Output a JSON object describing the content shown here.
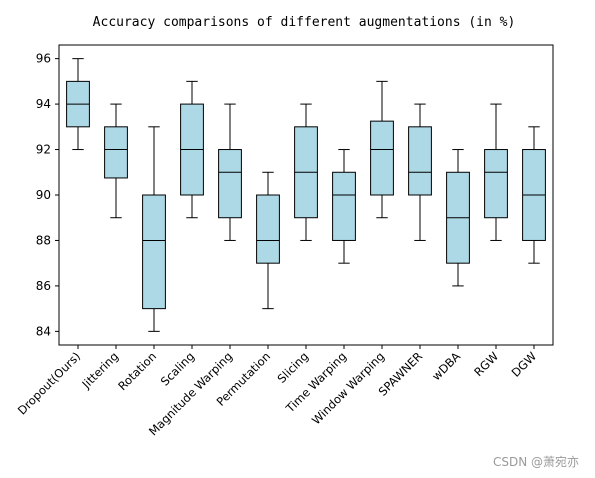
{
  "chart_data": {
    "type": "box",
    "title": "Accuracy comparisons of different augmentations (in %)",
    "xlabel": "",
    "ylabel": "",
    "ylim": [
      83.4,
      96.6
    ],
    "yticks": [
      84,
      86,
      88,
      90,
      92,
      94,
      96
    ],
    "box_color": "#add8e6",
    "line_color": "#000000",
    "categories": [
      "Dropout(Ours)",
      "Jittering",
      "Rotation",
      "Scaling",
      "Magnitude Warping",
      "Permutation",
      "Slicing",
      "Time Warping",
      "Window Warping",
      "SPAWNER",
      "wDBA",
      "RGW",
      "DGW"
    ],
    "boxes": [
      {
        "min": 92,
        "q1": 93,
        "median": 94,
        "q3": 95,
        "max": 96
      },
      {
        "min": 89,
        "q1": 90.75,
        "median": 92,
        "q3": 93,
        "max": 94
      },
      {
        "min": 84,
        "q1": 85,
        "median": 88,
        "q3": 90,
        "max": 93
      },
      {
        "min": 89,
        "q1": 90,
        "median": 92,
        "q3": 94,
        "max": 95
      },
      {
        "min": 88,
        "q1": 89,
        "median": 91,
        "q3": 92,
        "max": 94
      },
      {
        "min": 85,
        "q1": 87,
        "median": 88,
        "q3": 90,
        "max": 91
      },
      {
        "min": 88,
        "q1": 89,
        "median": 91,
        "q3": 93,
        "max": 94
      },
      {
        "min": 87,
        "q1": 88,
        "median": 90,
        "q3": 91,
        "max": 92
      },
      {
        "min": 89,
        "q1": 90,
        "median": 92,
        "q3": 93.25,
        "max": 95
      },
      {
        "min": 88,
        "q1": 90,
        "median": 91,
        "q3": 93,
        "max": 94
      },
      {
        "min": 86,
        "q1": 87,
        "median": 89,
        "q3": 91,
        "max": 92
      },
      {
        "min": 88,
        "q1": 89,
        "median": 91,
        "q3": 92,
        "max": 94
      },
      {
        "min": 87,
        "q1": 88,
        "median": 90,
        "q3": 92,
        "max": 93
      }
    ]
  },
  "watermark": "CSDN @萧宛亦"
}
